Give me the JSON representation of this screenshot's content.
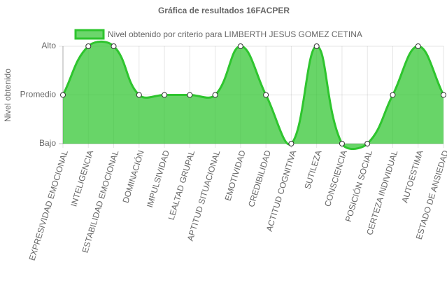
{
  "chart_data": {
    "type": "line",
    "title": "Gráfica de resultados 16FACPER",
    "y_label": "Nivel obtenido",
    "categories": [
      "EXPRESIVIDAD EMOCIONAL",
      "INTELIGENCIA",
      "ESTABILIDAD EMOCIONAL",
      "DOMINACIÓN",
      "IMPULSIVIDAD",
      "LEALTAD GRUPAL",
      "APTITUD SITUACIONAL",
      "EMOTIVIDAD",
      "CREDIBILIDAD",
      "ACTITUD COGNITIVA",
      "SUTILEZA",
      "CONSCIENCIA",
      "POSICIÓN SOCIAL",
      "CERTEZA INDIVIDUAL",
      "AUTOESTIMA",
      "ESTADO DE ANSIEDAD"
    ],
    "series": [
      {
        "name": "Nivel obtenido por criterio para LIMBERTH JESUS GOMEZ CETINA",
        "color": "#2ec52e",
        "values": [
          2,
          3,
          3,
          2,
          2,
          2,
          2,
          3,
          2,
          1,
          3,
          1,
          1,
          2,
          3,
          2
        ]
      }
    ],
    "ylim": [
      1,
      3
    ],
    "yticks": [
      {
        "value": 1,
        "label": "Bajo"
      },
      {
        "value": 2,
        "label": "Promedio"
      },
      {
        "value": 3,
        "label": "Alto"
      }
    ],
    "grid": true
  }
}
